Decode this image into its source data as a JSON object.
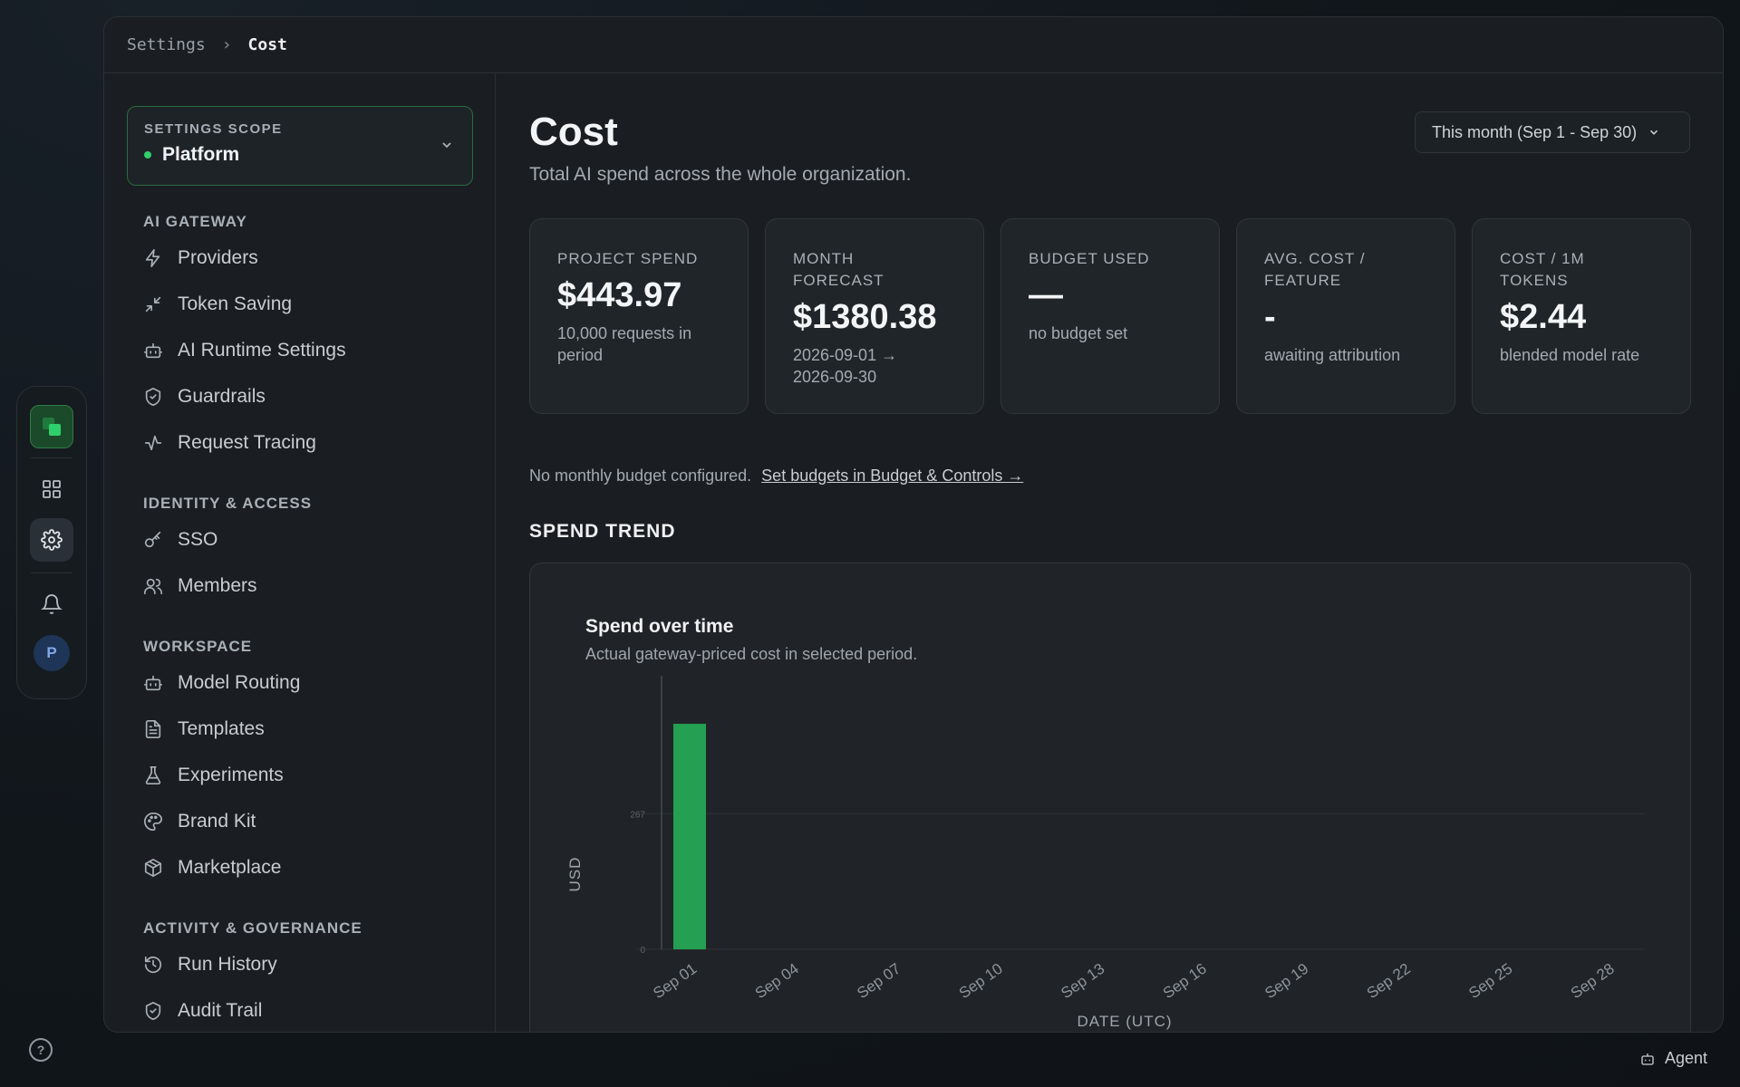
{
  "breadcrumb": {
    "parent": "Settings",
    "current": "Cost"
  },
  "scope": {
    "label": "SETTINGS SCOPE",
    "value": "Platform",
    "status_color": "#2fd06b"
  },
  "nav": {
    "groups": [
      {
        "title": "AI GATEWAY",
        "items": [
          {
            "label": "Providers",
            "icon": "bolt-icon"
          },
          {
            "label": "Token Saving",
            "icon": "compress-icon"
          },
          {
            "label": "AI Runtime Settings",
            "icon": "robot-icon"
          },
          {
            "label": "Guardrails",
            "icon": "shield-check-icon"
          },
          {
            "label": "Request Tracing",
            "icon": "activity-icon"
          }
        ]
      },
      {
        "title": "IDENTITY & ACCESS",
        "items": [
          {
            "label": "SSO",
            "icon": "key-icon"
          },
          {
            "label": "Members",
            "icon": "users-icon"
          }
        ]
      },
      {
        "title": "WORKSPACE",
        "items": [
          {
            "label": "Model Routing",
            "icon": "robot-icon"
          },
          {
            "label": "Templates",
            "icon": "file-text-icon"
          },
          {
            "label": "Experiments",
            "icon": "flask-icon"
          },
          {
            "label": "Brand Kit",
            "icon": "palette-icon"
          },
          {
            "label": "Marketplace",
            "icon": "package-icon"
          }
        ]
      },
      {
        "title": "ACTIVITY & GOVERNANCE",
        "items": [
          {
            "label": "Run History",
            "icon": "history-icon"
          },
          {
            "label": "Audit Trail",
            "icon": "shield-check-icon"
          }
        ]
      }
    ]
  },
  "rail": {
    "avatar_initial": "P"
  },
  "page": {
    "title": "Cost",
    "subtitle": "Total AI spend across the whole organization.",
    "period": "This month (Sep 1 - Sep 30)"
  },
  "cards": [
    {
      "label": "PROJECT SPEND",
      "value": "$443.97",
      "note": "10,000 requests in period"
    },
    {
      "label": "MONTH FORECAST",
      "value": "$1380.38",
      "note": "2026-09-01 → 2026-09-30"
    },
    {
      "label": "BUDGET USED",
      "value": "—",
      "note": "no budget set"
    },
    {
      "label": "AVG. COST / FEATURE",
      "value": "-",
      "note": "awaiting attribution"
    },
    {
      "label": "COST / 1M TOKENS",
      "value": "$2.44",
      "note": "blended model rate"
    }
  ],
  "budget": {
    "note": "No monthly budget configured.",
    "link": "Set budgets in Budget & Controls →"
  },
  "section": {
    "title": "SPEND TREND"
  },
  "chart_header": {
    "title": "Spend over time",
    "subtitle": "Actual gateway-priced cost in selected period."
  },
  "chart_data": {
    "type": "bar",
    "categories": [
      "Sep 01",
      "Sep 02",
      "Sep 03",
      "Sep 04",
      "Sep 05",
      "Sep 06",
      "Sep 07",
      "Sep 08",
      "Sep 09",
      "Sep 10",
      "Sep 11",
      "Sep 12",
      "Sep 13",
      "Sep 14",
      "Sep 15",
      "Sep 16",
      "Sep 17",
      "Sep 18",
      "Sep 19",
      "Sep 20",
      "Sep 21",
      "Sep 22",
      "Sep 23",
      "Sep 24",
      "Sep 25",
      "Sep 26",
      "Sep 27",
      "Sep 28",
      "Sep 29",
      "Sep 30"
    ],
    "tick_labels": [
      "Sep 01",
      "Sep 04",
      "Sep 07",
      "Sep 10",
      "Sep 13",
      "Sep 16",
      "Sep 19",
      "Sep 22",
      "Sep 25",
      "Sep 28"
    ],
    "values": [
      443.97,
      0,
      0,
      0,
      0,
      0,
      0,
      0,
      0,
      0,
      0,
      0,
      0,
      0,
      0,
      0,
      0,
      0,
      0,
      0,
      0,
      0,
      0,
      0,
      0,
      0,
      0,
      0,
      0,
      0
    ],
    "ylim": [
      0,
      535
    ],
    "ytick_values": [
      0,
      267
    ],
    "xlabel": "DATE (UTC)",
    "ylabel": "USD",
    "bar_color": "#25a052",
    "grid": true
  },
  "footer": {
    "agent_label": "Agent"
  }
}
